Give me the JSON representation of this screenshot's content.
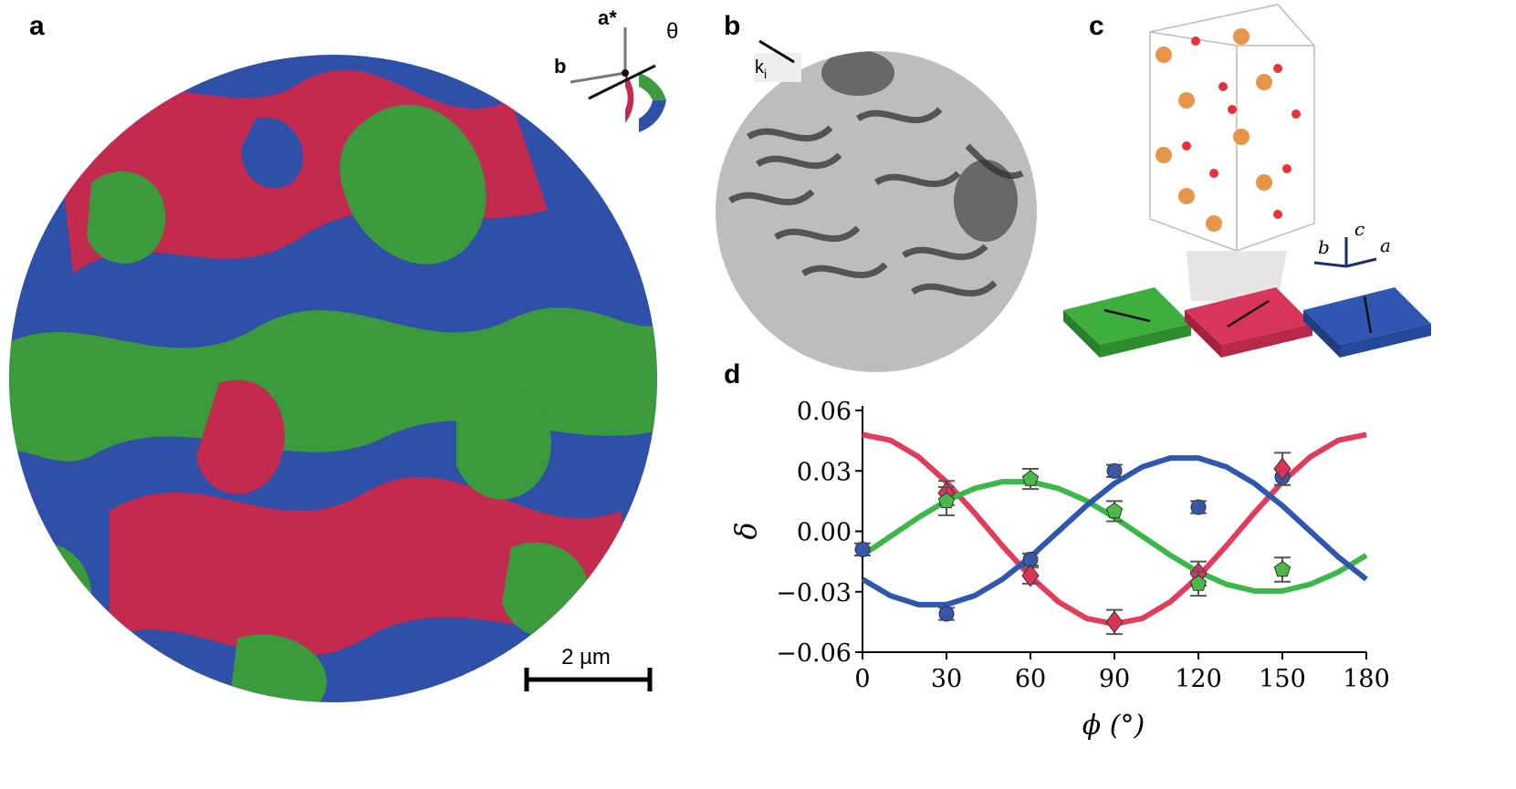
{
  "panels": {
    "a": {
      "label": "a",
      "scale_bar": "2 µm",
      "axis_a": "a*",
      "axis_b": "b",
      "angle": "θ"
    },
    "b": {
      "label": "b",
      "wavevector": "k",
      "wavevector_sub": "i"
    },
    "c": {
      "label": "c",
      "axes": [
        "b",
        "c",
        "a"
      ]
    },
    "d": {
      "label": "d"
    }
  },
  "chart_data": {
    "type": "scatter",
    "xlabel": "ϕ (°)",
    "ylabel": "δ",
    "xlim": [
      0,
      180
    ],
    "xticks": [
      0,
      30,
      60,
      90,
      120,
      150,
      180
    ],
    "ylim": [
      -0.06,
      0.06
    ],
    "yticks": [
      {
        "value": -0.06,
        "label": "−0.06"
      },
      {
        "value": -0.03,
        "label": "−0.03"
      },
      {
        "value": 0,
        "label": "0.00"
      },
      0.03,
      0.06
    ],
    "series": [
      {
        "color": "#3a56a8",
        "marker": "circle",
        "x": [
          0,
          30,
          60,
          90,
          120,
          150
        ],
        "values": [
          -0.009,
          -0.041,
          -0.014,
          0.03,
          0.012,
          0.027
        ],
        "errors": [
          0.003,
          0.003,
          0.003,
          0.003,
          0.003,
          0.004
        ]
      },
      {
        "color": "#d9345a",
        "marker": "diamond",
        "x": [
          30,
          60,
          90,
          120,
          150
        ],
        "values": [
          0.019,
          -0.022,
          -0.045,
          -0.021,
          0.031
        ],
        "errors": [
          0.006,
          0.004,
          0.006,
          0.006,
          0.008
        ]
      },
      {
        "color": "#4db84a",
        "marker": "pentagon",
        "x": [
          30,
          60,
          90,
          120,
          150
        ],
        "values": [
          0.015,
          0.026,
          0.01,
          -0.026,
          -0.019
        ],
        "errors": [
          0.007,
          0.005,
          0.005,
          0.006,
          0.006
        ]
      }
    ],
    "fit_x": [
      0,
      10,
      20,
      30,
      40,
      50,
      60,
      70,
      80,
      90,
      100,
      110,
      120,
      130,
      140,
      150,
      160,
      170,
      180
    ],
    "fits": [
      {
        "color": "#e23b5c",
        "values": [
          0.048,
          0.0452,
          0.037,
          0.0245,
          0.0092,
          -0.0072,
          -0.0225,
          -0.035,
          -0.0432,
          -0.046,
          -0.0432,
          -0.035,
          -0.0225,
          -0.0072,
          0.0092,
          0.0245,
          0.037,
          0.0452,
          0.048
        ]
      },
      {
        "color": "#3ab84a",
        "values": [
          -0.0119,
          -0.0025,
          0.0069,
          0.0152,
          0.0213,
          0.0246,
          0.0246,
          0.0213,
          0.0152,
          0.0069,
          -0.0025,
          -0.0119,
          -0.0202,
          -0.0263,
          -0.0296,
          -0.0296,
          -0.0263,
          -0.0202,
          -0.0119
        ]
      },
      {
        "color": "#2f56b0",
        "values": [
          -0.0238,
          -0.032,
          -0.0364,
          -0.0364,
          -0.032,
          -0.0238,
          -0.0127,
          0,
          0.0127,
          0.0238,
          0.032,
          0.0364,
          0.0364,
          0.032,
          0.0238,
          0.0127,
          0,
          -0.0127,
          -0.0238
        ]
      }
    ]
  }
}
